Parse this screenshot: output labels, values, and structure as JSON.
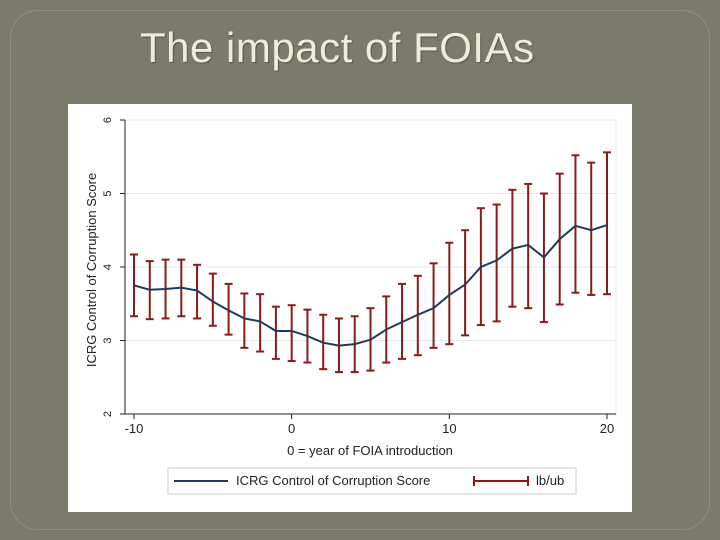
{
  "slide": {
    "title": "The impact of FOIAs"
  },
  "colors": {
    "background": "#7b7b6c",
    "title_text": "#eeeed8",
    "estimate_line": "#1f3b5c",
    "bounds": "#8b1a1a"
  },
  "chart_data": {
    "type": "line",
    "title": "",
    "xlabel": "0 = year of FOIA introduction",
    "ylabel": "ICRG Control of Corruption Score",
    "xlim": [
      -10,
      20
    ],
    "ylim": [
      2,
      6
    ],
    "x_ticks": [
      -10,
      0,
      10,
      20
    ],
    "y_ticks": [
      2,
      3,
      4,
      5,
      6
    ],
    "x_tick_labels": [
      "-10",
      "0",
      "10",
      "20"
    ],
    "y_tick_labels": [
      "2",
      "3",
      "4",
      "5",
      "6"
    ],
    "grid": "horizontal",
    "legend_position": "bottom",
    "x": [
      -10,
      -9,
      -8,
      -7,
      -6,
      -5,
      -4,
      -3,
      -2,
      -1,
      0,
      1,
      2,
      3,
      4,
      5,
      6,
      7,
      8,
      9,
      10,
      11,
      12,
      13,
      14,
      15,
      16,
      17,
      18,
      19,
      20
    ],
    "series": [
      {
        "name": "ICRG Control of Corruption Score",
        "style": "line",
        "color": "#1f3b5c",
        "values": [
          3.75,
          3.69,
          3.7,
          3.72,
          3.68,
          3.53,
          3.41,
          3.3,
          3.26,
          3.13,
          3.13,
          3.06,
          2.97,
          2.93,
          2.95,
          3.01,
          3.15,
          3.25,
          3.35,
          3.44,
          3.62,
          3.76,
          4.0,
          4.09,
          4.25,
          4.3,
          4.13,
          4.38,
          4.56,
          4.5,
          4.57
        ]
      },
      {
        "name": "lb/ub",
        "style": "error-bars",
        "color": "#8b1a1a",
        "lower": [
          3.33,
          3.29,
          3.3,
          3.33,
          3.3,
          3.2,
          3.08,
          2.9,
          2.85,
          2.75,
          2.72,
          2.7,
          2.61,
          2.57,
          2.57,
          2.59,
          2.7,
          2.75,
          2.8,
          2.9,
          2.95,
          3.07,
          3.21,
          3.26,
          3.46,
          3.44,
          3.25,
          3.49,
          3.65,
          3.62,
          3.63
        ],
        "upper": [
          4.17,
          4.08,
          4.1,
          4.1,
          4.03,
          3.91,
          3.77,
          3.64,
          3.63,
          3.46,
          3.48,
          3.42,
          3.35,
          3.3,
          3.33,
          3.44,
          3.6,
          3.77,
          3.88,
          4.05,
          4.33,
          4.5,
          4.8,
          4.85,
          5.05,
          5.13,
          5.0,
          5.27,
          5.52,
          5.42,
          5.56
        ]
      }
    ]
  }
}
